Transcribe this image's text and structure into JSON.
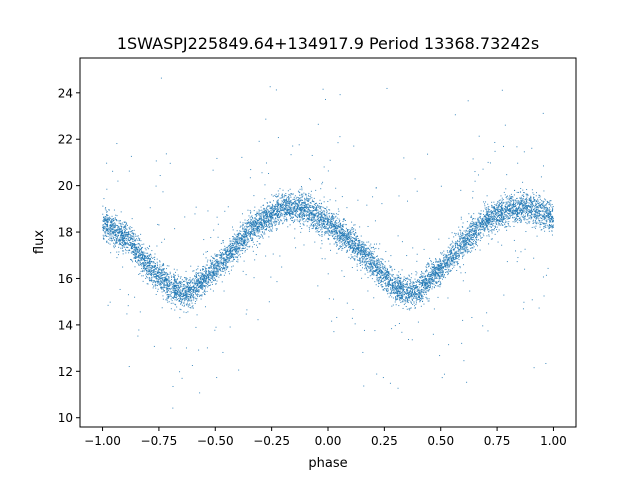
{
  "chart_data": {
    "type": "scatter",
    "title": "1SWASPJ225849.64+134917.9 Period 13368.73242s",
    "xlabel": "phase",
    "ylabel": "flux",
    "xlim": [
      -1.1,
      1.1
    ],
    "ylim": [
      9.6,
      25.5
    ],
    "xticks": [
      -1.0,
      -0.75,
      -0.5,
      -0.25,
      0.0,
      0.25,
      0.5,
      0.75,
      1.0
    ],
    "xtick_labels": [
      "−1.00",
      "−0.75",
      "−0.50",
      "−0.25",
      "0.00",
      "0.25",
      "0.50",
      "0.75",
      "1.00"
    ],
    "yticks": [
      10,
      12,
      14,
      16,
      18,
      20,
      22,
      24
    ],
    "ytick_labels": [
      "10",
      "12",
      "14",
      "16",
      "18",
      "20",
      "22",
      "24"
    ],
    "grid": false,
    "legend": "none",
    "marker_color": "#1f77b4",
    "series": [
      {
        "x": [
          -1.0,
          -0.9,
          -0.8,
          -0.7,
          -0.65,
          -0.6,
          -0.5,
          -0.4,
          -0.3,
          -0.2,
          -0.15,
          -0.1,
          0.0,
          0.1,
          0.2,
          0.3,
          0.35,
          0.4,
          0.5,
          0.6,
          0.7,
          0.8,
          0.85,
          0.9,
          1.0
        ],
        "y": [
          18.4,
          17.8,
          16.6,
          15.6,
          15.4,
          15.5,
          16.4,
          17.5,
          18.5,
          19.0,
          19.1,
          19.0,
          18.4,
          17.6,
          16.6,
          15.6,
          15.4,
          15.5,
          16.4,
          17.5,
          18.5,
          19.0,
          19.1,
          19.0,
          18.6
        ]
      }
    ]
  }
}
